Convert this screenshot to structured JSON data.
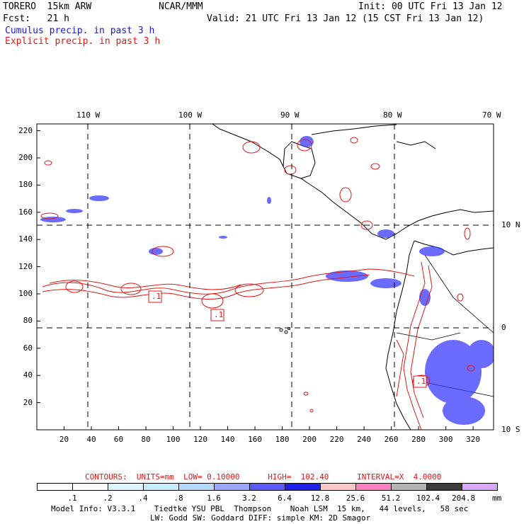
{
  "header": {
    "model": "TORERO  15km ARW",
    "center": "NCAR/MMM",
    "init": "Init: 00 UTC Fri 13 Jan 12",
    "fcst": "Fcst:   21 h",
    "valid": "Valid: 21 UTC Fri 13 Jan 12 (15 CST Fri 13 Jan 12)",
    "legend_cumulus": "Cumulus precip. in past 3 h",
    "legend_explicit": "Explicit precip. in past 3 h"
  },
  "colors": {
    "cumulus": "#1a1acc",
    "explicit": "#e01818",
    "grid": "#000000"
  },
  "chart_data": {
    "type": "heatmap",
    "title": "Cumulus / Explicit precip. in past 3 h",
    "x_ticks": [
      "20",
      "40",
      "60",
      "80",
      "100",
      "120",
      "140",
      "160",
      "180",
      "200",
      "220",
      "240",
      "260",
      "280",
      "300",
      "320"
    ],
    "y_ticks": [
      "20",
      "40",
      "60",
      "80",
      "100",
      "120",
      "140",
      "160",
      "180",
      "200",
      "220"
    ],
    "lon_labels": [
      "110 W",
      "100 W",
      "90 W",
      "80 W",
      "70 W"
    ],
    "lat_labels": [
      "10 N",
      "0",
      "10 S"
    ],
    "xlim": [
      0,
      335
    ],
    "ylim": [
      0,
      225
    ],
    "contour_labels": [
      ".1",
      ".1",
      ".1"
    ]
  },
  "contours_info": {
    "text": "CONTOURS:  UNITS=mm  LOW= 0.10000      HIGH=  102.40      INTERVAL=X  4.0000"
  },
  "colorbar": {
    "labels": [
      ".1",
      ".2",
      ".4",
      ".8",
      "1.6",
      "3.2",
      "6.4",
      "12.8",
      "25.6",
      "51.2",
      "102.4",
      "204.8"
    ],
    "colors": [
      "#ffffff",
      "#ffffff",
      "#e0f4ff",
      "#c8ecff",
      "#b4d8ff",
      "#9aa6ff",
      "#5a5aff",
      "#2020ee",
      "#ffc8c8",
      "#ff80c0",
      "#b4b4b4",
      "#3c3c3c",
      "#d8a8ff"
    ],
    "unit": "mm"
  },
  "footer": {
    "line1": "Model Info: V3.3.1    Tiedtke YSU PBL  Thompson    Noah LSM  15 km,   44 levels,   58 sec",
    "line2": "LW: Godd SW: Goddard DIFF: simple KM: 2D Smagor"
  }
}
